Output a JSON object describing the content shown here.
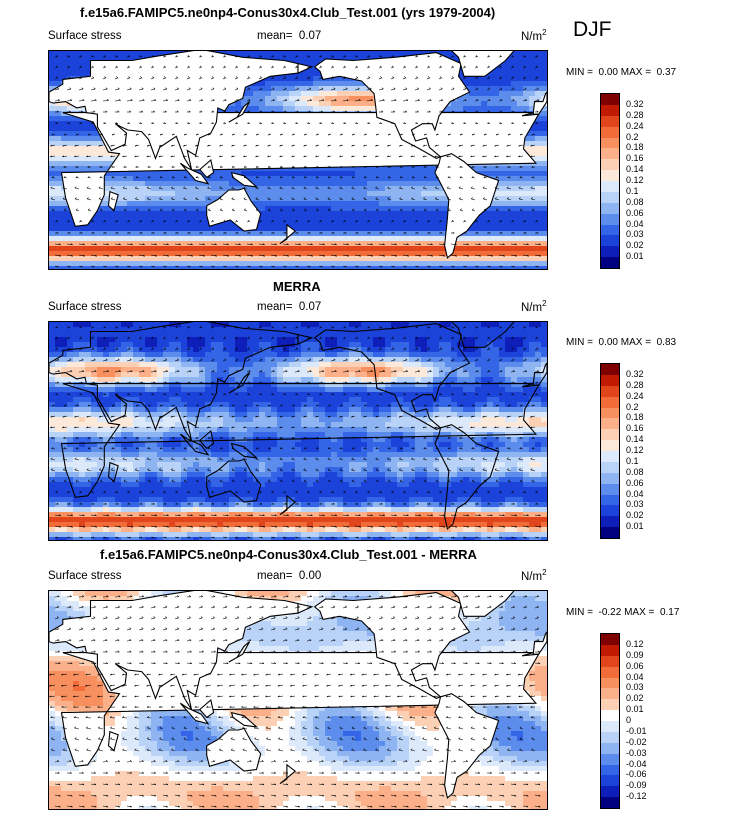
{
  "season": "DJF",
  "panels": [
    {
      "title": "f.e15a6.FAMIPC5.ne0np4-Conus30x4.Club_Test.001 (yrs 1979-2004)",
      "left_label": "Surface stress",
      "mean_label": "mean=",
      "mean_value": "0.07",
      "units": "N/m",
      "units_sup": "2",
      "min_label": "MIN =",
      "min_value": "0.00",
      "max_label": "MAX =",
      "max_value": "0.37",
      "levels": [
        "0.32",
        "0.28",
        "0.24",
        "0.2",
        "0.18",
        "0.16",
        "0.14",
        "0.12",
        "0.1",
        "0.08",
        "0.06",
        "0.04",
        "0.03",
        "0.02",
        "0.01"
      ],
      "colors": [
        "#7f0000",
        "#c21a00",
        "#e0451c",
        "#f26c3a",
        "#f78f5e",
        "#fbb08a",
        "#fcd0b4",
        "#fde9da",
        "#dce9fb",
        "#b8d2f8",
        "#8eb5f2",
        "#5c8ded",
        "#3465e6",
        "#1b43d9",
        "#0d1fb8",
        "#000080"
      ],
      "field_type": "model"
    },
    {
      "title": "MERRA",
      "left_label": "Surface stress",
      "mean_label": "mean=",
      "mean_value": "0.07",
      "units": "N/m",
      "units_sup": "2",
      "min_label": "MIN =",
      "min_value": "0.00",
      "max_label": "MAX =",
      "max_value": "0.83",
      "levels": [
        "0.32",
        "0.28",
        "0.24",
        "0.2",
        "0.18",
        "0.16",
        "0.14",
        "0.12",
        "0.1",
        "0.08",
        "0.06",
        "0.04",
        "0.03",
        "0.02",
        "0.01"
      ],
      "colors": [
        "#7f0000",
        "#c21a00",
        "#e0451c",
        "#f26c3a",
        "#f78f5e",
        "#fbb08a",
        "#fcd0b4",
        "#fde9da",
        "#dce9fb",
        "#b8d2f8",
        "#8eb5f2",
        "#5c8ded",
        "#3465e6",
        "#1b43d9",
        "#0d1fb8",
        "#000080"
      ],
      "field_type": "obs"
    },
    {
      "title": "f.e15a6.FAMIPC5.ne0np4-Conus30x4.Club_Test.001 - MERRA",
      "left_label": "Surface stress",
      "mean_label": "mean=",
      "mean_value": "0.00",
      "units": "N/m",
      "units_sup": "2",
      "min_label": "MIN =",
      "min_value": "-0.22",
      "max_label": "MAX =",
      "max_value": "0.17",
      "levels": [
        "0.12",
        "0.09",
        "0.06",
        "0.04",
        "0.03",
        "0.02",
        "0.01",
        "0",
        "-0.01",
        "-0.02",
        "-0.03",
        "-0.04",
        "-0.06",
        "-0.09",
        "-0.12"
      ],
      "colors": [
        "#7f0000",
        "#c21a00",
        "#e0451c",
        "#f26c3a",
        "#f78f5e",
        "#fbb08a",
        "#fcd0b4",
        "#ffffff",
        "#dce9fb",
        "#b8d2f8",
        "#8eb5f2",
        "#5c8ded",
        "#3465e6",
        "#1b43d9",
        "#0d1fb8",
        "#000080"
      ],
      "field_type": "diff"
    }
  ]
}
